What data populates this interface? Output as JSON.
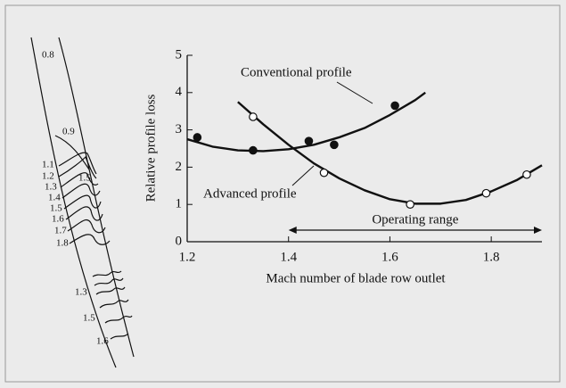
{
  "chart_data": {
    "type": "scatter",
    "xlabel": "Mach number of blade row outlet",
    "ylabel": "Relative profile loss",
    "xlim": [
      1.2,
      1.9
    ],
    "ylim": [
      0,
      5
    ],
    "xticks": [
      1.2,
      1.4,
      1.6,
      1.8
    ],
    "yticks": [
      0,
      1,
      2,
      3,
      4,
      5
    ],
    "series": [
      {
        "name": "Conventional profile",
        "color": "#111111",
        "marker": "filled",
        "x": [
          1.22,
          1.33,
          1.44,
          1.49,
          1.61
        ],
        "values": [
          2.8,
          2.45,
          2.7,
          2.6,
          3.65
        ],
        "fit_x": [
          1.2,
          1.25,
          1.3,
          1.35,
          1.4,
          1.45,
          1.5,
          1.55,
          1.6,
          1.65,
          1.67
        ],
        "fit_values": [
          2.75,
          2.55,
          2.45,
          2.43,
          2.48,
          2.6,
          2.8,
          3.05,
          3.4,
          3.8,
          4.0
        ]
      },
      {
        "name": "Advanced profile",
        "color": "#111111",
        "marker": "open",
        "x": [
          1.33,
          1.47,
          1.64,
          1.79,
          1.87
        ],
        "values": [
          3.35,
          1.85,
          1.0,
          1.3,
          1.8
        ],
        "fit_x": [
          1.3,
          1.35,
          1.4,
          1.45,
          1.5,
          1.55,
          1.6,
          1.65,
          1.7,
          1.75,
          1.8,
          1.85,
          1.9
        ],
        "fit_values": [
          3.75,
          3.15,
          2.6,
          2.1,
          1.7,
          1.38,
          1.14,
          1.02,
          1.02,
          1.12,
          1.35,
          1.65,
          2.05
        ]
      }
    ],
    "operating_range": {
      "label": "Operating range",
      "x": [
        1.4,
        1.9
      ]
    }
  },
  "diagram": {
    "labels": [
      "0.8",
      "0.9",
      "1.1",
      "1.2",
      "1.3",
      "1.4",
      "1.5",
      "1.6",
      "1.7",
      "1.8",
      "1.5",
      "1.3",
      "1.5",
      "1.6"
    ]
  }
}
